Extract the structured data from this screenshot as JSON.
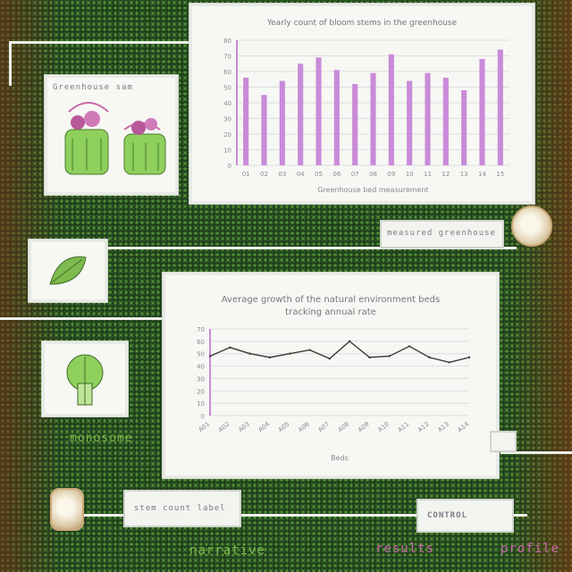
{
  "texts": {
    "top_chart_title": "Yearly count of bloom stems in the greenhouse",
    "top_chart_xlabel": "Greenhouse bed measurement",
    "bottom_chart_title": "Average growth of the natural environment beds",
    "bottom_chart_subtitle": "tracking annual rate",
    "bottom_chart_xlabel": "Beds",
    "small_card_caption": "Greenhouse samples",
    "plant_label": "monosome",
    "ribbon_label_1": "measured greenhouse samples",
    "ribbon_label_2": "stem count label",
    "ribbon_label_3": "CONTROL",
    "word_bottom_left": "narrative",
    "word_bottom_mid": "results",
    "word_bottom_right": "profile"
  },
  "colors": {
    "bar": "#c98bd9",
    "line": "#3b3b3b",
    "leaf": "#7dbb4e",
    "background": "#1f3d1b"
  },
  "chart_data": [
    {
      "type": "bar",
      "categories": [
        "01",
        "02",
        "03",
        "04",
        "05",
        "06",
        "07",
        "08",
        "09",
        "10",
        "11",
        "12",
        "13",
        "14",
        "15"
      ],
      "values": [
        56,
        45,
        54,
        65,
        69,
        61,
        52,
        59,
        71,
        54,
        59,
        56,
        48,
        68,
        74
      ],
      "ylim": [
        0,
        80
      ],
      "yticks": [
        0,
        10,
        20,
        30,
        40,
        50,
        60,
        70,
        80
      ],
      "grid": true
    },
    {
      "type": "line",
      "categories": [
        "A01",
        "A02",
        "A03",
        "A04",
        "A05",
        "A06",
        "A07",
        "A08",
        "A09",
        "A10",
        "A11",
        "A12",
        "A13",
        "A14"
      ],
      "values": [
        48,
        55,
        50,
        47,
        50,
        53,
        46,
        60,
        47,
        48,
        56,
        47,
        43,
        47
      ],
      "ylim": [
        0,
        70
      ],
      "yticks": [
        0,
        10,
        20,
        30,
        40,
        50,
        60,
        70
      ],
      "grid": true
    }
  ]
}
